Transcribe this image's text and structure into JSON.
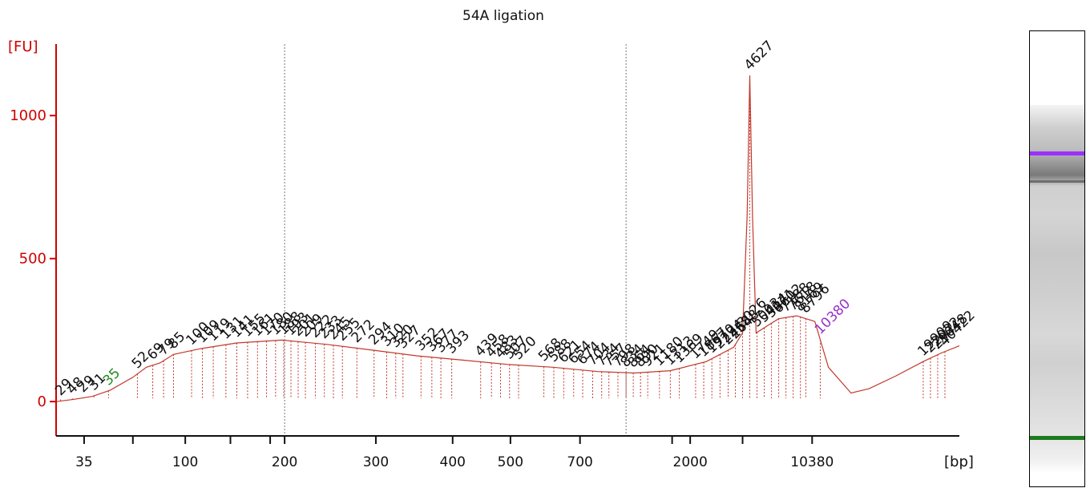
{
  "chart_data": {
    "type": "line",
    "title": "54A ligation",
    "ylabel": "[FU]",
    "xlabel": "[bp]",
    "ylim": [
      -120,
      1250
    ],
    "yticks": [
      0,
      500,
      1000
    ],
    "xticks": [
      {
        "label": "35",
        "pos": 0.031
      },
      {
        "label": "",
        "pos": 0.085
      },
      {
        "label": "100",
        "pos": 0.143
      },
      {
        "label": "",
        "pos": 0.193
      },
      {
        "label": "",
        "pos": 0.237
      },
      {
        "label": "200",
        "pos": 0.253
      },
      {
        "label": "300",
        "pos": 0.354
      },
      {
        "label": "400",
        "pos": 0.439
      },
      {
        "label": "500",
        "pos": 0.503
      },
      {
        "label": "700",
        "pos": 0.58
      },
      {
        "label": "",
        "pos": 0.682
      },
      {
        "label": "2000",
        "pos": 0.702
      },
      {
        "label": "",
        "pos": 0.76
      },
      {
        "label": "10380",
        "pos": 0.837
      }
    ],
    "gridlines_at": [
      0.253,
      0.631
    ],
    "series": [
      {
        "color": "#c0392b",
        "x": [
          0,
          0.02,
          0.04,
          0.06,
          0.085,
          0.1,
          0.115,
          0.13,
          0.16,
          0.2,
          0.25,
          0.3,
          0.35,
          0.4,
          0.45,
          0.5,
          0.55,
          0.6,
          0.64,
          0.68,
          0.72,
          0.75,
          0.76,
          0.765,
          0.768,
          0.771,
          0.775,
          0.79,
          0.8,
          0.82,
          0.84,
          0.855,
          0.88,
          0.9,
          0.93,
          0.96,
          0.98,
          1.0
        ],
        "y": [
          0,
          8,
          18,
          40,
          85,
          120,
          135,
          165,
          185,
          205,
          215,
          200,
          180,
          160,
          145,
          130,
          120,
          105,
          100,
          108,
          140,
          190,
          240,
          650,
          1140,
          650,
          240,
          270,
          290,
          300,
          280,
          120,
          30,
          45,
          90,
          140,
          170,
          195
        ]
      }
    ],
    "peaks": [
      {
        "label": "29",
        "x": 0.005,
        "y": 5
      },
      {
        "label": "48",
        "x": 0.018,
        "y": 8
      },
      {
        "label": "29",
        "x": 0.03,
        "y": 10
      },
      {
        "label": "31",
        "x": 0.042,
        "y": 12
      },
      {
        "label": "35",
        "x": 0.058,
        "y": 18,
        "color": "#228b22"
      },
      {
        "label": "52",
        "x": 0.09,
        "y": 85
      },
      {
        "label": "69",
        "x": 0.107,
        "y": 150
      },
      {
        "label": "79",
        "x": 0.119,
        "y": 135
      },
      {
        "label": "85",
        "x": 0.13,
        "y": 165
      },
      {
        "label": "100",
        "x": 0.15,
        "y": 170
      },
      {
        "label": "109",
        "x": 0.162,
        "y": 175
      },
      {
        "label": "119",
        "x": 0.174,
        "y": 180
      },
      {
        "label": "131",
        "x": 0.188,
        "y": 185
      },
      {
        "label": "141",
        "x": 0.2,
        "y": 190
      },
      {
        "label": "155",
        "x": 0.212,
        "y": 195
      },
      {
        "label": "161",
        "x": 0.223,
        "y": 198
      },
      {
        "label": "170",
        "x": 0.233,
        "y": 200
      },
      {
        "label": "180",
        "x": 0.243,
        "y": 202
      },
      {
        "label": "188",
        "x": 0.252,
        "y": 204
      },
      {
        "label": "193",
        "x": 0.26,
        "y": 206
      },
      {
        "label": "201",
        "x": 0.268,
        "y": 208
      },
      {
        "label": "209",
        "x": 0.276,
        "y": 210
      },
      {
        "label": "222",
        "x": 0.287,
        "y": 210
      },
      {
        "label": "233",
        "x": 0.297,
        "y": 210
      },
      {
        "label": "245",
        "x": 0.307,
        "y": 210
      },
      {
        "label": "255",
        "x": 0.317,
        "y": 208
      },
      {
        "label": "272",
        "x": 0.333,
        "y": 206
      },
      {
        "label": "294",
        "x": 0.352,
        "y": 200
      },
      {
        "label": "310",
        "x": 0.366,
        "y": 195
      },
      {
        "label": "320",
        "x": 0.376,
        "y": 192
      },
      {
        "label": "327",
        "x": 0.384,
        "y": 190
      },
      {
        "label": "352",
        "x": 0.404,
        "y": 183
      },
      {
        "label": "367",
        "x": 0.416,
        "y": 178
      },
      {
        "label": "377",
        "x": 0.426,
        "y": 175
      },
      {
        "label": "393",
        "x": 0.438,
        "y": 170
      },
      {
        "label": "439",
        "x": 0.47,
        "y": 158
      },
      {
        "label": "458",
        "x": 0.482,
        "y": 152
      },
      {
        "label": "483",
        "x": 0.492,
        "y": 148
      },
      {
        "label": "507",
        "x": 0.502,
        "y": 144
      },
      {
        "label": "520",
        "x": 0.512,
        "y": 142
      },
      {
        "label": "568",
        "x": 0.54,
        "y": 133
      },
      {
        "label": "588",
        "x": 0.551,
        "y": 130
      },
      {
        "label": "621",
        "x": 0.562,
        "y": 126
      },
      {
        "label": "654",
        "x": 0.573,
        "y": 122
      },
      {
        "label": "674",
        "x": 0.583,
        "y": 120
      },
      {
        "label": "704",
        "x": 0.594,
        "y": 116
      },
      {
        "label": "734",
        "x": 0.604,
        "y": 112
      },
      {
        "label": "757",
        "x": 0.612,
        "y": 110
      },
      {
        "label": "798",
        "x": 0.622,
        "y": 106
      },
      {
        "label": "834",
        "x": 0.631,
        "y": 104
      },
      {
        "label": "864",
        "x": 0.639,
        "y": 102
      },
      {
        "label": "890",
        "x": 0.647,
        "y": 100
      },
      {
        "label": "921",
        "x": 0.655,
        "y": 100
      },
      {
        "label": "1180",
        "x": 0.668,
        "y": 140
      },
      {
        "label": "1313",
        "x": 0.68,
        "y": 105
      },
      {
        "label": "1369",
        "x": 0.69,
        "y": 108
      },
      {
        "label": "1749",
        "x": 0.708,
        "y": 112
      },
      {
        "label": "1867",
        "x": 0.717,
        "y": 115
      },
      {
        "label": "1970",
        "x": 0.726,
        "y": 120
      },
      {
        "label": "2224",
        "x": 0.735,
        "y": 125
      },
      {
        "label": "2458",
        "x": 0.744,
        "y": 130
      },
      {
        "label": "2648",
        "x": 0.752,
        "y": 140
      },
      {
        "label": "3026",
        "x": 0.76,
        "y": 155
      },
      {
        "label": "4627",
        "x": 0.768,
        "y": 1140
      },
      {
        "label": "5003",
        "x": 0.776,
        "y": 250
      },
      {
        "label": "5414",
        "x": 0.784,
        "y": 260
      },
      {
        "label": "5971",
        "x": 0.792,
        "y": 270
      },
      {
        "label": "6602",
        "x": 0.8,
        "y": 280
      },
      {
        "label": "7188",
        "x": 0.808,
        "y": 285
      },
      {
        "label": "7618",
        "x": 0.816,
        "y": 290
      },
      {
        "label": "8169",
        "x": 0.824,
        "y": 295
      },
      {
        "label": "8796",
        "x": 0.83,
        "y": 298
      },
      {
        "label": "10380",
        "x": 0.846,
        "y": 300,
        "color": "#9932cc"
      },
      {
        "label": "19909",
        "x": 0.96,
        "y": 140
      },
      {
        "label": "22022",
        "x": 0.968,
        "y": 150
      },
      {
        "label": "29048",
        "x": 0.976,
        "y": 160
      },
      {
        "label": "40422",
        "x": 0.984,
        "y": 170
      }
    ]
  },
  "gel": {
    "upper_marker_color": "#9b30ff",
    "lower_marker_color": "#1e7b1e"
  }
}
